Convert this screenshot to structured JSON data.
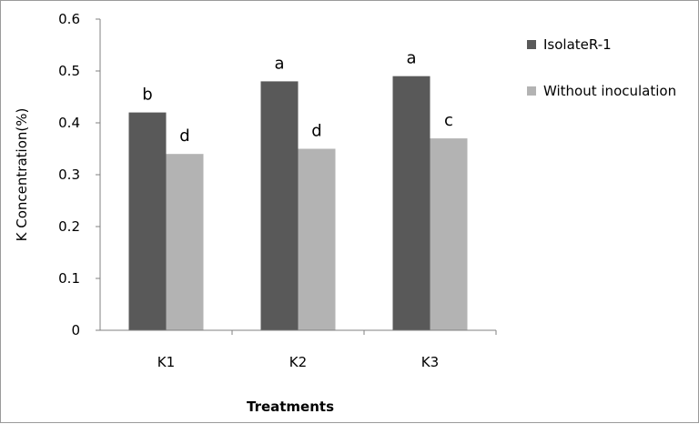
{
  "chart_data": {
    "type": "bar",
    "categories": [
      "K1",
      "K2",
      "K3"
    ],
    "series": [
      {
        "name": "IsolateR-1",
        "values": [
          0.42,
          0.48,
          0.49
        ],
        "letters": [
          "b",
          "a",
          "a"
        ],
        "color": "#595959"
      },
      {
        "name": "Without inoculation",
        "values": [
          0.34,
          0.35,
          0.37
        ],
        "letters": [
          "d",
          "d",
          "c"
        ],
        "color": "#b3b3b3"
      }
    ],
    "xlabel": "Treatments",
    "ylabel": "K Concentration(%)",
    "ylim": [
      0,
      0.6
    ],
    "yticks": [
      "0",
      "0.1",
      "0.2",
      "0.3",
      "0.4",
      "0.5",
      "0.6"
    ],
    "grid": false,
    "legend_position": "right"
  }
}
